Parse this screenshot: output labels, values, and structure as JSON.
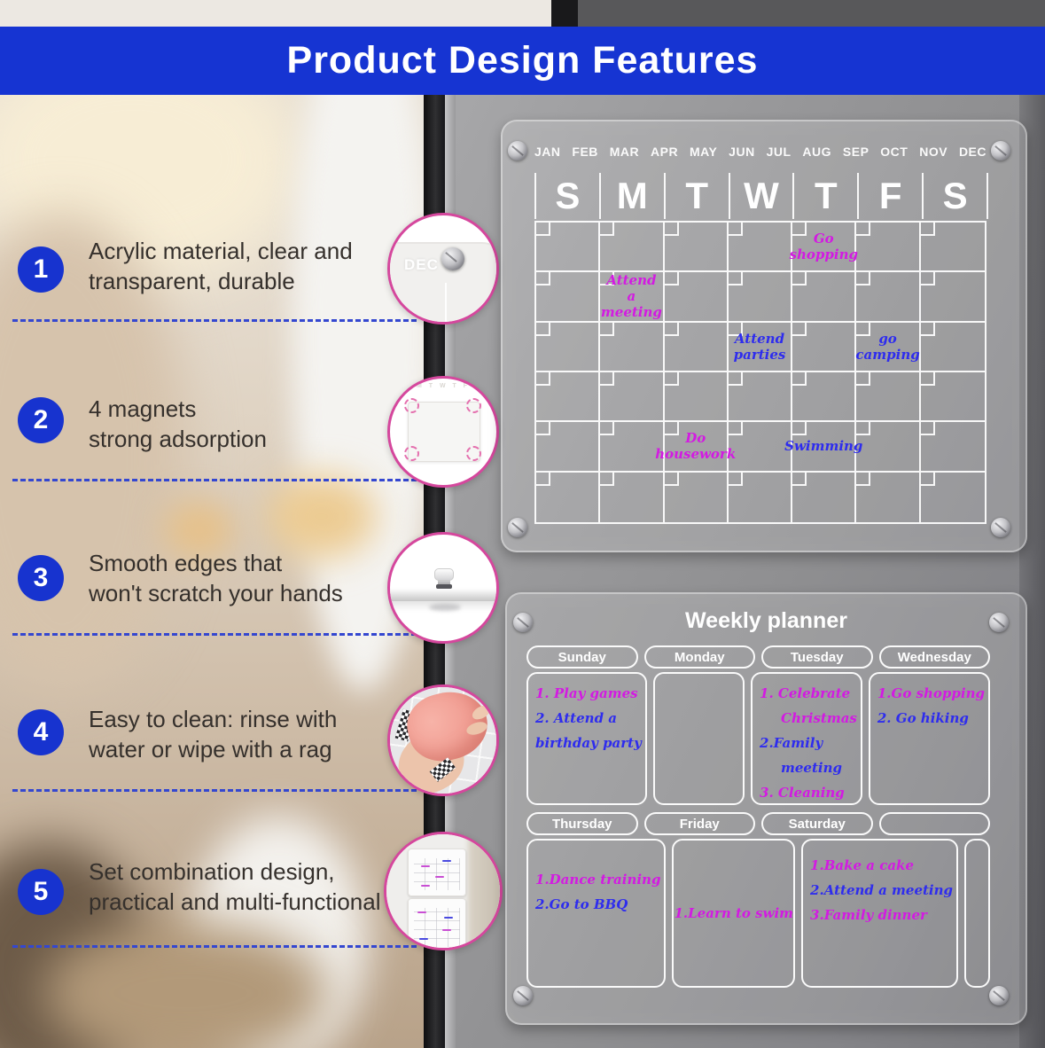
{
  "header": {
    "title": "Product Design Features"
  },
  "colors": {
    "header_blue": "#1634d2",
    "feature_circle_blue": "#1733cf",
    "dashed_line_blue": "#3447d0",
    "callout_ring_pink": "#d5479d",
    "ink_magenta": "#d31ae2",
    "ink_blue": "#2e2cee"
  },
  "features": [
    {
      "num": "1",
      "lines": [
        "Acrylic material, clear and",
        "transparent, durable"
      ],
      "callout_icon": "acrylic-corner",
      "callout_label": "DEC"
    },
    {
      "num": "2",
      "lines": [
        "4 magnets",
        "strong adsorption"
      ],
      "callout_icon": "four-corner-magnets"
    },
    {
      "num": "3",
      "lines": [
        "Smooth edges that",
        "won't scratch your hands"
      ],
      "callout_icon": "smooth-edge-standoff"
    },
    {
      "num": "4",
      "lines": [
        "Easy to clean: rinse with",
        "water or wipe with a rag"
      ],
      "callout_icon": "cleaning-rag"
    },
    {
      "num": "5",
      "lines": [
        "Set combination design,",
        "practical and multi-functional"
      ],
      "callout_icon": "two-board-set"
    }
  ],
  "monthly_calendar": {
    "months": [
      "JAN",
      "FEB",
      "MAR",
      "APR",
      "MAY",
      "JUN",
      "JUL",
      "AUG",
      "SEP",
      "OCT",
      "NOV",
      "DEC"
    ],
    "day_letters": [
      "S",
      "M",
      "T",
      "W",
      "T",
      "F",
      "S"
    ],
    "weeks": 6,
    "notes": [
      {
        "week": 1,
        "day": 5,
        "text": "Go\nshopping",
        "color": "ink_magenta"
      },
      {
        "week": 2,
        "day": 2,
        "text": "Attend\na meeting",
        "color": "ink_magenta"
      },
      {
        "week": 3,
        "day": 4,
        "text": "Attend\nparties",
        "color": "ink_blue"
      },
      {
        "week": 3,
        "day": 6,
        "text": "go\ncamping",
        "color": "ink_blue"
      },
      {
        "week": 5,
        "day": 3,
        "text": "Do\nhousework",
        "color": "ink_magenta"
      },
      {
        "week": 5,
        "day": 5,
        "text": "Swimming",
        "color": "ink_blue"
      }
    ]
  },
  "weekly_planner": {
    "title": "Weekly planner",
    "rows": [
      {
        "headers": [
          "Sunday",
          "Monday",
          "Tuesday",
          "Wednesday"
        ],
        "cells": [
          {
            "day": "Sunday",
            "lines": [
              {
                "text": "1. Play games",
                "color": "ink_magenta"
              },
              {
                "text": "2. Attend a",
                "color": "ink_blue"
              },
              {
                "text": "birthday party",
                "color": "ink_blue"
              }
            ]
          },
          {
            "day": "Monday",
            "lines": []
          },
          {
            "day": "Tuesday",
            "lines": [
              {
                "text": "1. Celebrate",
                "color": "ink_magenta"
              },
              {
                "text": "Christmas",
                "color": "ink_magenta",
                "indent": true
              },
              {
                "text": "2.Family",
                "color": "ink_blue"
              },
              {
                "text": "meeting",
                "color": "ink_blue",
                "indent": true
              },
              {
                "text": "3. Cleaning",
                "color": "ink_magenta"
              }
            ]
          },
          {
            "day": "Wednesday",
            "lines": [
              {
                "text": "1.Go shopping",
                "color": "ink_magenta"
              },
              {
                "text": "2. Go hiking",
                "color": "ink_blue"
              }
            ]
          }
        ]
      },
      {
        "headers": [
          "Thursday",
          "Friday",
          "Saturday",
          ""
        ],
        "cells": [
          {
            "day": "Thursday",
            "lines": [
              {
                "text": "1.Dance training",
                "color": "ink_magenta"
              },
              {
                "text": "2.Go to BBQ",
                "color": "ink_blue"
              }
            ]
          },
          {
            "day": "Friday",
            "align": "center",
            "lines": [
              {
                "text": "1.Learn to swim",
                "color": "ink_magenta"
              }
            ]
          },
          {
            "day": "Saturday",
            "lines": [
              {
                "text": "1.Bake a cake",
                "color": "ink_magenta"
              },
              {
                "text": "2.Attend a meeting",
                "color": "ink_blue"
              },
              {
                "text": "3.Family dinner",
                "color": "ink_magenta"
              }
            ]
          },
          {
            "day": "",
            "lines": []
          }
        ]
      }
    ]
  }
}
